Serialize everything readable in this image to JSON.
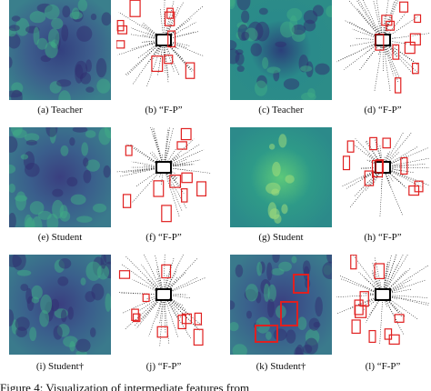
{
  "panels": [
    {
      "caption": "(a) Teacher"
    },
    {
      "caption": "(b) “F-P”"
    },
    {
      "caption": "(c) Teacher"
    },
    {
      "caption": "(d) “F-P”"
    },
    {
      "caption": "(e) Student"
    },
    {
      "caption": "(f) “F-P”"
    },
    {
      "caption": "(g) Student"
    },
    {
      "caption": "(h) “F-P”"
    },
    {
      "caption": "(i) Student†"
    },
    {
      "caption": "(j) “F-P”"
    },
    {
      "caption": "(k) Student†"
    },
    {
      "caption": "(l) “F-P”"
    }
  ],
  "figure_caption": "Figure 4: Visualization of intermediate features from"
}
